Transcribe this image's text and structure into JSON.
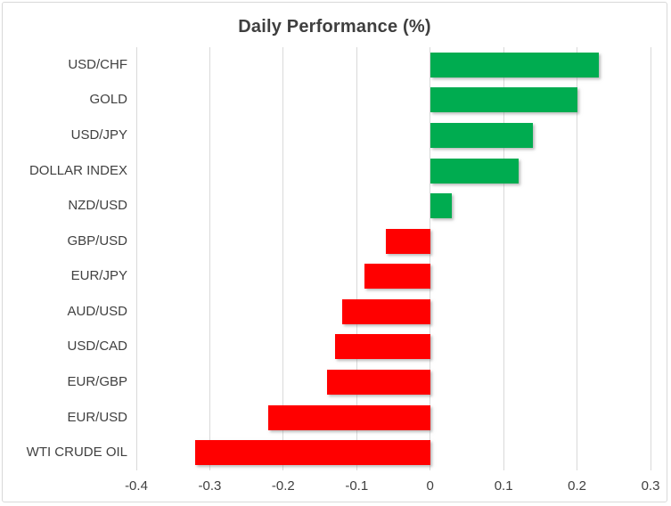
{
  "chart": {
    "colors": {
      "positive": "#00AC50",
      "negative": "#FF0000",
      "gridline": "#D9D9D9",
      "axis_text": "#404040",
      "title_text": "#3F3F3F",
      "frame_border": "#D9D9D9",
      "background": "#FFFFFF"
    }
  },
  "chart_data": {
    "type": "bar",
    "orientation": "horizontal",
    "title": "Daily Performance (%)",
    "xlabel": "",
    "ylabel": "",
    "categories": [
      "USD/CHF",
      "GOLD",
      "USD/JPY",
      "DOLLAR INDEX",
      "NZD/USD",
      "GBP/USD",
      "EUR/JPY",
      "AUD/USD",
      "USD/CAD",
      "EUR/GBP",
      "EUR/USD",
      "WTI CRUDE OIL"
    ],
    "values": [
      0.23,
      0.2,
      0.14,
      0.12,
      0.03,
      -0.06,
      -0.09,
      -0.12,
      -0.13,
      -0.14,
      -0.22,
      -0.32
    ],
    "xlim": [
      -0.4,
      0.3
    ],
    "x_ticks": [
      -0.4,
      -0.3,
      -0.2,
      -0.1,
      0,
      0.1,
      0.2,
      0.3
    ],
    "x_tick_labels": [
      "-0.4",
      "-0.3",
      "-0.2",
      "-0.1",
      "0",
      "0.1",
      "0.2",
      "0.3"
    ],
    "grid": true,
    "legend": false
  }
}
